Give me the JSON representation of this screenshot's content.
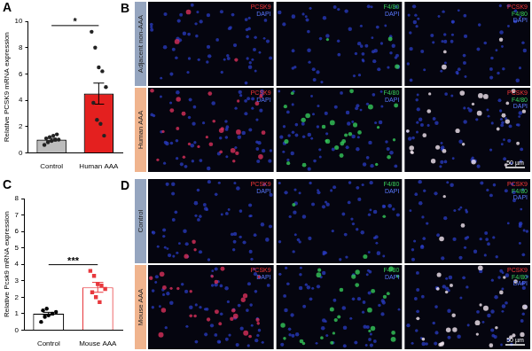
{
  "chart_data": [
    {
      "panel": "A",
      "type": "bar",
      "y_label": "Relative PCSK9 mRNA expression",
      "categories": [
        "Control",
        "Human AAA"
      ],
      "values": [
        1.0,
        4.5
      ],
      "errors": [
        0.1,
        0.8
      ],
      "colors": [
        "#bdbdbd",
        "#e4201f"
      ],
      "edge_colors": [
        "#000000",
        "#000000"
      ],
      "points": [
        {
          "values": [
            0.6,
            0.8,
            0.9,
            1.0,
            1.0,
            1.1,
            1.2,
            1.3,
            1.4
          ],
          "color": "#222222",
          "marker": "circle"
        },
        {
          "values": [
            9.2,
            8.0,
            6.5,
            6.2,
            5.0,
            3.8,
            2.5,
            2.2,
            1.3
          ],
          "color": "#222222",
          "marker": "circle"
        }
      ],
      "significance": "*",
      "ylim": [
        0,
        10
      ],
      "yticks": [
        0,
        2,
        4,
        6,
        8,
        10
      ],
      "grid": false
    },
    {
      "panel": "C",
      "type": "bar",
      "y_label": "Relative Pcsk9 mRNA expression",
      "categories": [
        "Control",
        "Mouse AAA"
      ],
      "values": [
        1.0,
        2.6
      ],
      "errors": [
        0.08,
        0.3
      ],
      "colors": [
        "#ffffff",
        "#ffffff"
      ],
      "edge_colors": [
        "#000000",
        "#e8383d"
      ],
      "points": [
        {
          "values": [
            0.5,
            0.8,
            0.9,
            1.0,
            1.1,
            1.2,
            1.3
          ],
          "color": "#000000",
          "marker": "circle"
        },
        {
          "values": [
            3.6,
            3.3,
            2.8,
            2.7,
            2.5,
            2.3,
            2.0,
            1.7
          ],
          "color": "#e8383d",
          "marker": "square"
        }
      ],
      "significance": "***",
      "ylim": [
        0,
        8
      ],
      "yticks": [
        0,
        1,
        2,
        3,
        4,
        5,
        6,
        7,
        8
      ],
      "grid": false
    }
  ],
  "images": [
    {
      "panel": "B",
      "rows": [
        {
          "text": "Adjacent non-AAA",
          "color": "#95a5bf"
        },
        {
          "text": "Human AAA",
          "color": "#f0b48e"
        }
      ],
      "columns": [
        [
          {
            "text": "PCSK9",
            "color": "#ff3a3a"
          },
          {
            "text": "DAPI",
            "color": "#5a78ff"
          }
        ],
        [
          {
            "text": "F4/80",
            "color": "#3ad15a"
          },
          {
            "text": "DAPI",
            "color": "#5a78ff"
          }
        ],
        [
          {
            "text": "PCSK9",
            "color": "#ff3a3a"
          },
          {
            "text": "F4/80",
            "color": "#3ad15a"
          },
          {
            "text": "DAPI",
            "color": "#5a78ff"
          }
        ]
      ],
      "scale_bar": "50 µm"
    },
    {
      "panel": "D",
      "rows": [
        {
          "text": "Control",
          "color": "#95a5bf"
        },
        {
          "text": "Mouse AAA",
          "color": "#f0b48e"
        }
      ],
      "columns": [
        [
          {
            "text": "PCSK9",
            "color": "#ff3a3a"
          },
          {
            "text": "DAPI",
            "color": "#5a78ff"
          }
        ],
        [
          {
            "text": "F4/80",
            "color": "#3ad15a"
          },
          {
            "text": "DAPI",
            "color": "#5a78ff"
          }
        ],
        [
          {
            "text": "PCSK9",
            "color": "#ff3a3a"
          },
          {
            "text": "F4/80",
            "color": "#3ad15a"
          },
          {
            "text": "DAPI",
            "color": "#5a78ff"
          }
        ]
      ],
      "scale_bar": "50 µm"
    }
  ]
}
